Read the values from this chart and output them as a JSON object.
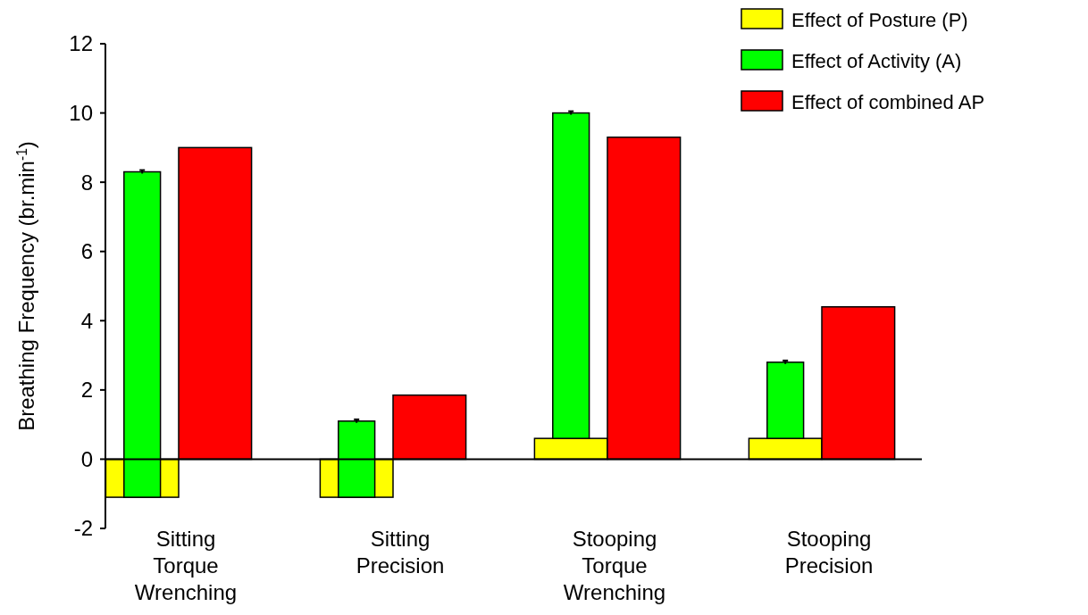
{
  "chart_data": {
    "type": "bar",
    "ylabel": "Breathing Frequency (br.min$^{-1}$)",
    "categories": [
      "Sitting Torque Wrenching",
      "Sitting Precision",
      "Stooping Torque Wrenching",
      "Stooping Precision"
    ],
    "series": [
      {
        "name": "Effect of Posture (P)",
        "color": "#ffff00",
        "values": [
          -1.1,
          -1.1,
          0.6,
          0.6
        ]
      },
      {
        "name": "Effect of Activity (A)",
        "color": "#00ff00",
        "values": [
          9.4,
          2.2,
          9.4,
          2.2
        ],
        "base": [
          -1.1,
          -1.1,
          0.6,
          0.6
        ],
        "errors": [
          0.05,
          0.05,
          0.05,
          0.05
        ]
      },
      {
        "name": "Effect of combined AP",
        "color": "#ff0000",
        "values": [
          9.0,
          1.85,
          9.3,
          4.4
        ]
      }
    ],
    "ylim": [
      -2,
      12
    ],
    "yticks": [
      -2,
      0,
      2,
      4,
      6,
      8,
      10,
      12
    ],
    "legend": "top right"
  }
}
